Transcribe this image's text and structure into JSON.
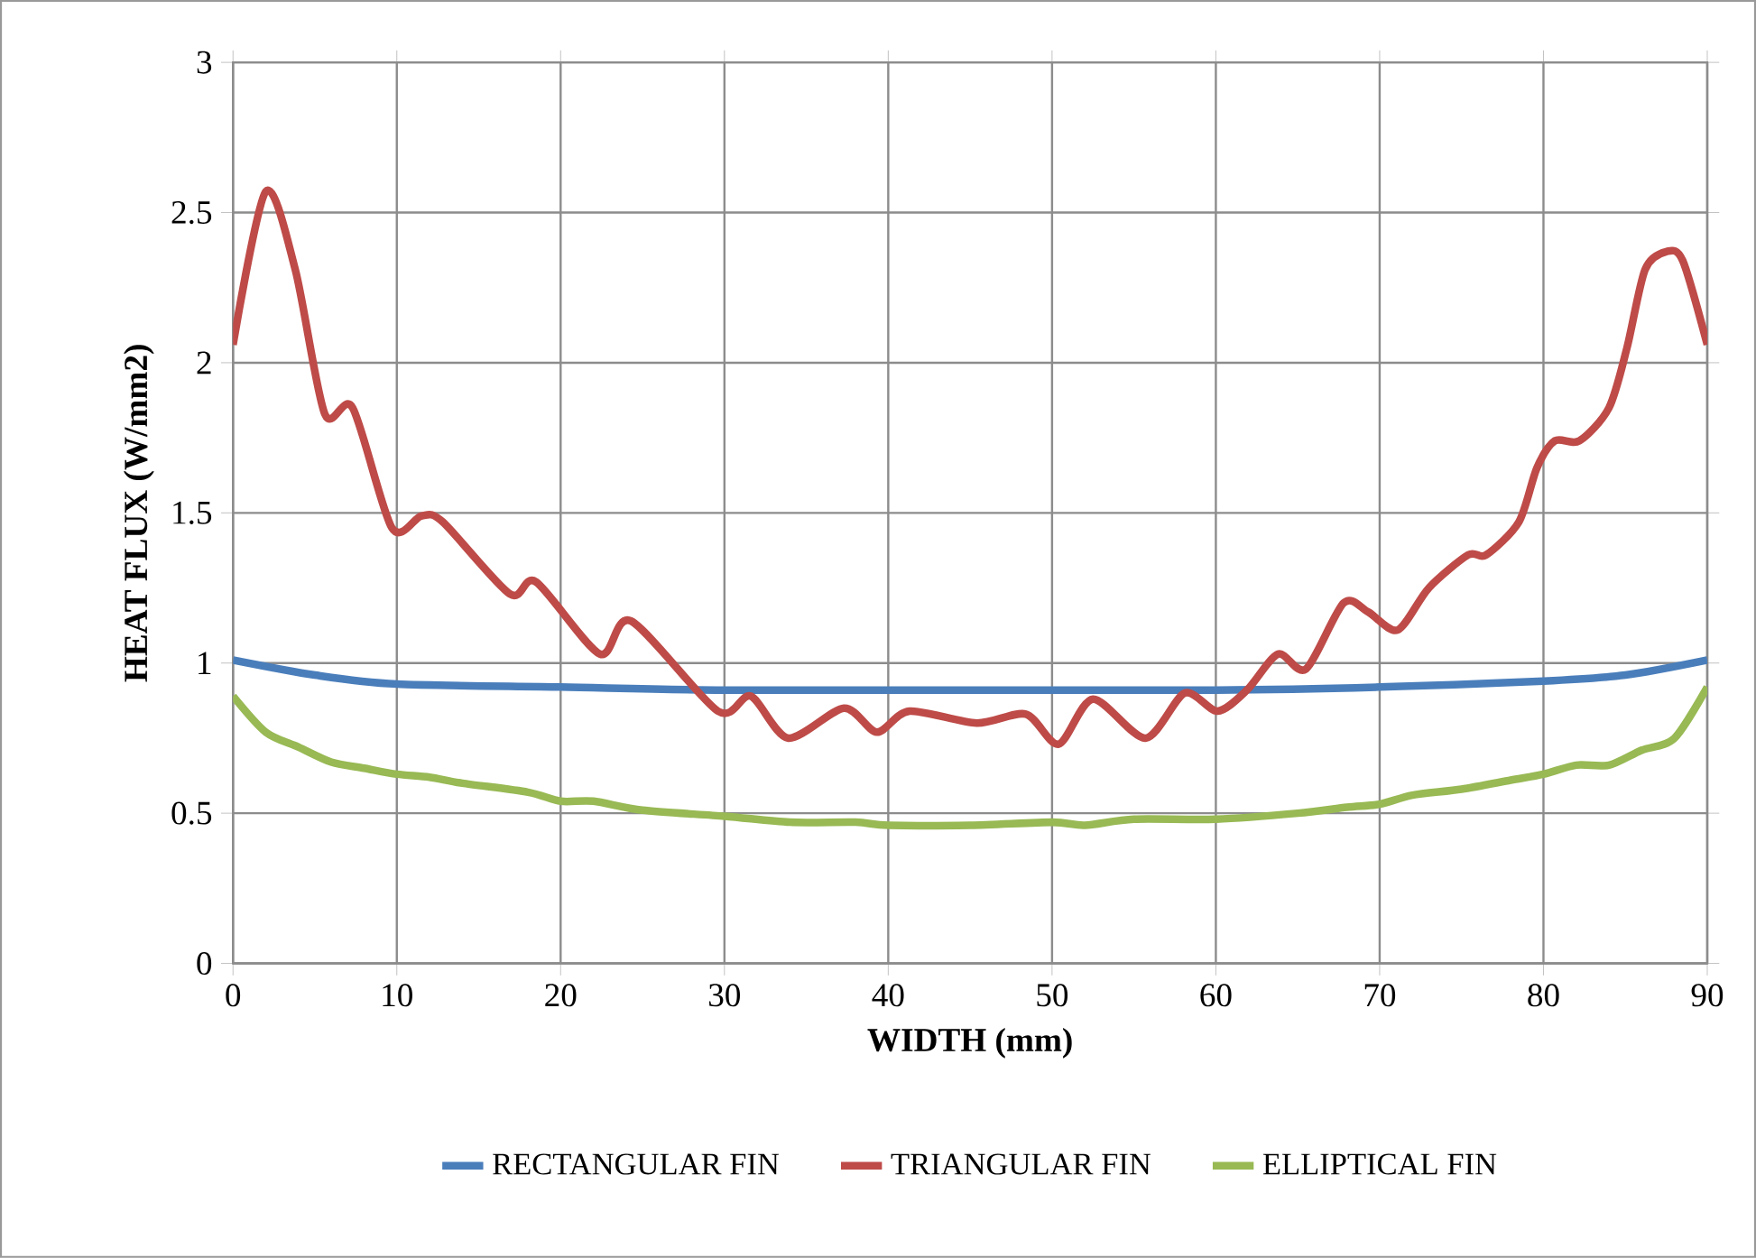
{
  "chart_data": {
    "type": "line",
    "xlabel": "WIDTH (mm)",
    "ylabel": "HEAT  FLUX  (W/mm2)",
    "xlim": [
      0,
      90
    ],
    "xticks": [
      0,
      10,
      20,
      30,
      40,
      50,
      60,
      70,
      80,
      90
    ],
    "ylim": [
      0,
      3
    ],
    "yticks": [
      0,
      0.5,
      1,
      1.5,
      2,
      2.5,
      3
    ],
    "grid": true,
    "legend": "bottom",
    "marker": "none",
    "line_style": "solid",
    "series": [
      {
        "name": "RECTANGULAR FIN",
        "color": "#4a7ebb",
        "x": [
          0,
          5,
          10,
          20,
          30,
          45,
          60,
          70,
          80,
          85,
          90
        ],
        "values": [
          1.01,
          0.96,
          0.93,
          0.92,
          0.91,
          0.91,
          0.91,
          0.92,
          0.94,
          0.96,
          1.01
        ]
      },
      {
        "name": "TRIANGULAR FIN",
        "color": "#be4b48",
        "x": [
          0,
          2,
          3.8,
          5.6,
          7.3,
          9.7,
          11.5,
          12.8,
          16.9,
          18.5,
          22.4,
          24.3,
          29.6,
          31.6,
          33.9,
          37.3,
          39.3,
          41.3,
          45.4,
          48.4,
          50.4,
          52.5,
          55.7,
          58.1,
          60.1,
          61.9,
          63.8,
          65.5,
          67.8,
          69.3,
          71.1,
          73.0,
          75.4,
          76.5,
          78.5,
          79.6,
          80.7,
          82.2,
          84.0,
          85.1,
          86.2,
          87.5,
          88.5,
          90
        ],
        "values": [
          2.06,
          2.57,
          2.31,
          1.83,
          1.85,
          1.45,
          1.49,
          1.47,
          1.23,
          1.27,
          1.03,
          1.14,
          0.84,
          0.89,
          0.75,
          0.85,
          0.77,
          0.84,
          0.8,
          0.83,
          0.73,
          0.88,
          0.75,
          0.9,
          0.84,
          0.91,
          1.03,
          0.98,
          1.2,
          1.17,
          1.11,
          1.25,
          1.36,
          1.36,
          1.47,
          1.65,
          1.74,
          1.74,
          1.85,
          2.05,
          2.31,
          2.37,
          2.34,
          2.06
        ]
      },
      {
        "name": "ELLIPTICAL FIN",
        "color": "#98b954",
        "x": [
          0,
          2,
          4,
          6,
          8,
          10,
          12,
          14,
          18,
          20,
          22,
          25,
          30,
          34,
          38,
          40,
          45,
          50,
          52,
          55,
          60,
          65,
          68,
          70,
          72,
          75,
          78,
          80,
          82,
          84,
          86,
          88,
          90
        ],
        "values": [
          0.89,
          0.77,
          0.72,
          0.67,
          0.65,
          0.63,
          0.62,
          0.6,
          0.57,
          0.54,
          0.54,
          0.51,
          0.49,
          0.47,
          0.47,
          0.46,
          0.46,
          0.47,
          0.46,
          0.48,
          0.48,
          0.5,
          0.52,
          0.53,
          0.56,
          0.58,
          0.61,
          0.63,
          0.66,
          0.66,
          0.71,
          0.75,
          0.92
        ]
      }
    ]
  }
}
